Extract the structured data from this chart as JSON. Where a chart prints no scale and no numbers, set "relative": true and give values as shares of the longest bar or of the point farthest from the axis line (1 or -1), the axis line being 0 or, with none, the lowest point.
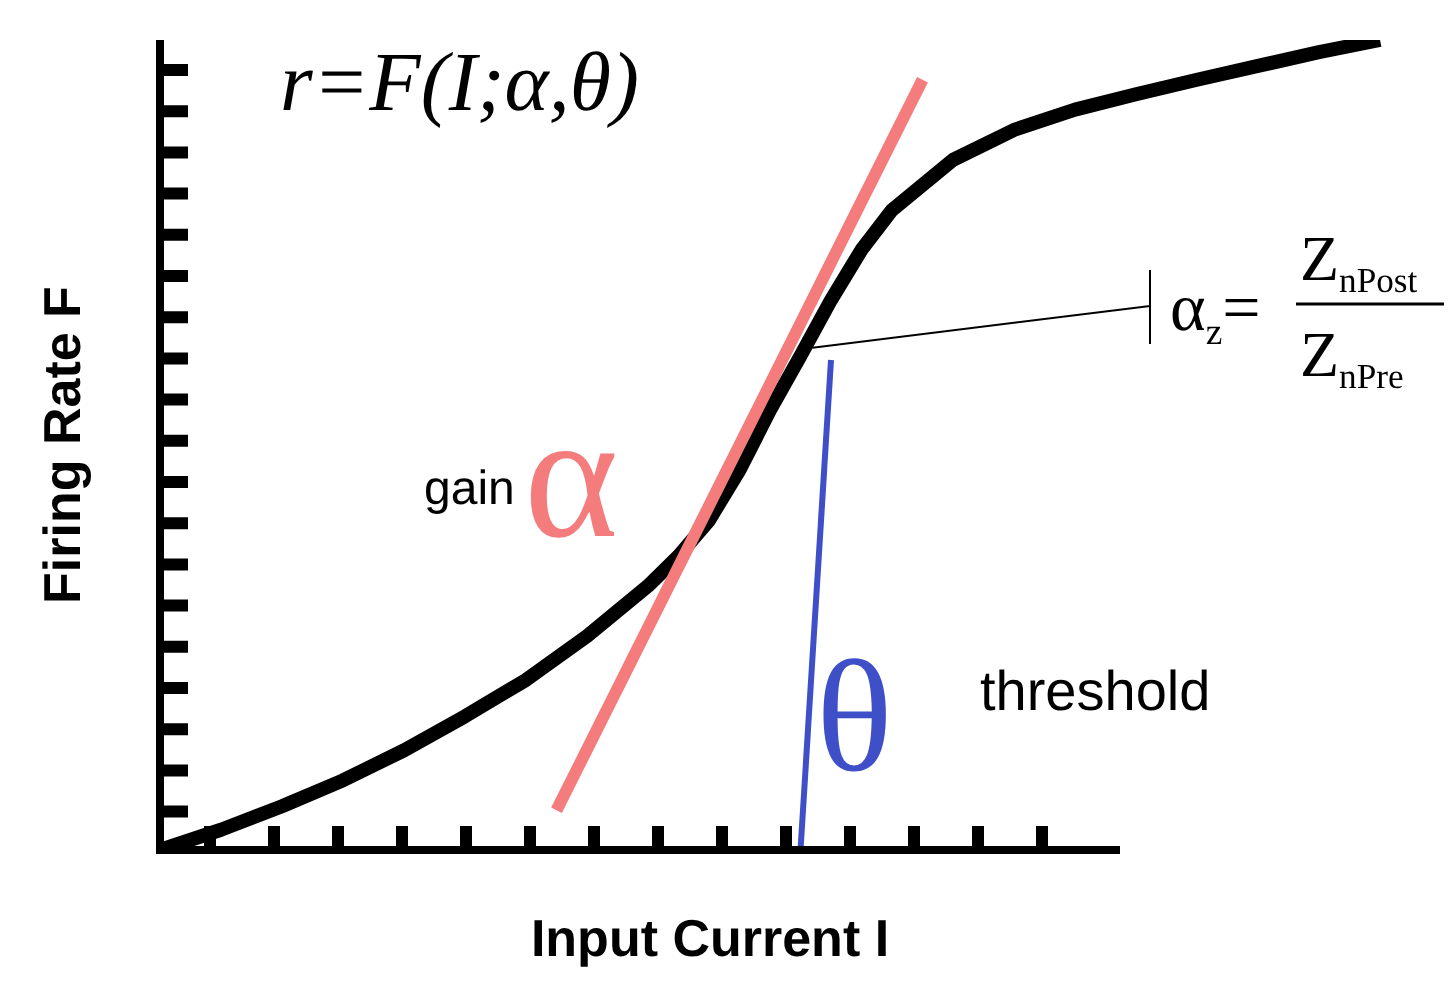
{
  "chart_data": {
    "type": "line",
    "title": "r=F(I;α,θ)",
    "xlabel": "Input Current  I",
    "ylabel": "Firing Rate  F",
    "relative": true,
    "marker": "none",
    "line_style": "solid",
    "categories": [
      null,
      null,
      null,
      null,
      null,
      null,
      null,
      null,
      null,
      null,
      null,
      null,
      null,
      null,
      null,
      null,
      null,
      null,
      null,
      null,
      null,
      null,
      null,
      null,
      null,
      null,
      null,
      null,
      null,
      null,
      null,
      null,
      null,
      null,
      null,
      null,
      null,
      null,
      null,
      null,
      null
    ],
    "series": [
      {
        "color": "#000000",
        "values": [
          0,
          null,
          0.025,
          null,
          0.054,
          null,
          0.086,
          null,
          0.123,
          null,
          0.165,
          null,
          0.21,
          null,
          0.264,
          null,
          0.326,
          0.363,
          0.407,
          0.469,
          0.543,
          0.61,
          0.679,
          0.741,
          0.79,
          null,
          0.852,
          null,
          0.889,
          null,
          0.914,
          null,
          0.933,
          null,
          0.951,
          null,
          0.968,
          null,
          0.985,
          null,
          1
        ]
      },
      {
        "color": "#f47c7c",
        "values": [
          null,
          null,
          null,
          null,
          null,
          null,
          null,
          null,
          null,
          null,
          null,
          null,
          null,
          0.049,
          null,
          null,
          null,
          null,
          null,
          null,
          null,
          null,
          null,
          null,
          null,
          0.951,
          null,
          null,
          null,
          null,
          null,
          null,
          null,
          null,
          null,
          null,
          null,
          null,
          null,
          null,
          null
        ]
      },
      {
        "color": "#3f4fc8",
        "values": [
          null,
          null,
          null,
          null,
          null,
          null,
          null,
          null,
          null,
          null,
          null,
          null,
          null,
          null,
          null,
          null,
          null,
          null,
          null,
          null,
          null,
          0,
          0.605,
          null,
          null,
          null,
          null,
          null,
          null,
          null,
          null,
          null,
          null,
          null,
          null,
          null,
          null,
          null,
          null,
          null,
          null
        ]
      }
    ],
    "annotations": [
      "gain",
      "α",
      "θ",
      "threshold",
      "α$_{z}$=",
      "Z$_{nPost}$",
      "Z$_{nPre}$"
    ]
  }
}
